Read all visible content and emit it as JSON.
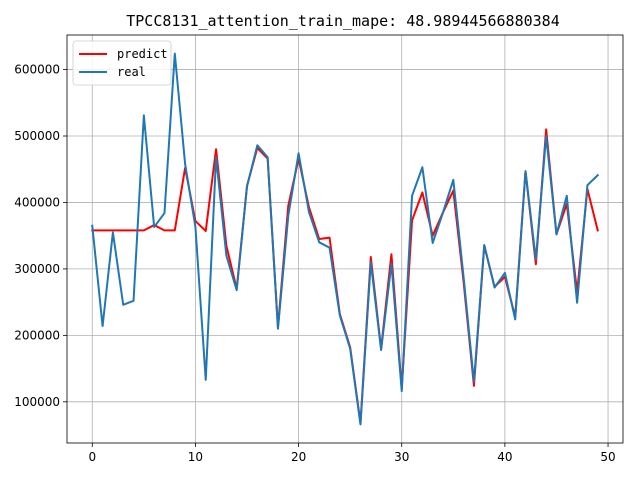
{
  "chart_data": {
    "type": "line",
    "title": "TPCC8131_attention_train_mape: 48.98944566880384",
    "xlabel": "",
    "ylabel": "",
    "xlim": [
      -2.45,
      51.45
    ],
    "ylim": [
      38000,
      652000
    ],
    "grid": true,
    "legend_position": "top-left",
    "x_ticks": [
      0,
      10,
      20,
      30,
      40,
      50
    ],
    "x_tick_labels": [
      "0",
      "10",
      "20",
      "30",
      "40",
      "50"
    ],
    "y_ticks": [
      100000,
      200000,
      300000,
      400000,
      500000,
      600000
    ],
    "y_tick_labels": [
      "100000",
      "200000",
      "300000",
      "400000",
      "500000",
      "600000"
    ],
    "x": [
      0,
      1,
      2,
      3,
      4,
      5,
      6,
      7,
      8,
      9,
      10,
      11,
      12,
      13,
      14,
      15,
      16,
      17,
      18,
      19,
      20,
      21,
      22,
      23,
      24,
      25,
      26,
      27,
      28,
      29,
      30,
      31,
      32,
      33,
      34,
      35,
      36,
      37,
      38,
      39,
      40,
      41,
      42,
      43,
      44,
      45,
      46,
      47,
      48,
      49
    ],
    "series": [
      {
        "name": "predict",
        "color": "#ff0000",
        "values": [
          358000,
          358000,
          358000,
          358000,
          358000,
          358000,
          366000,
          358000,
          358000,
          452000,
          372000,
          357000,
          480000,
          335000,
          270000,
          425000,
          482000,
          466000,
          212000,
          395000,
          466000,
          393000,
          345000,
          347000,
          232000,
          182000,
          68000,
          318000,
          180000,
          322000,
          120000,
          373000,
          415000,
          350000,
          385000,
          418000,
          280000,
          124000,
          335000,
          273000,
          288000,
          228000,
          447000,
          307000,
          510000,
          352000,
          398000,
          265000,
          420000,
          358000
        ]
      },
      {
        "name": "real",
        "color": "#1f77b4",
        "values": [
          365000,
          214000,
          355000,
          246000,
          252000,
          531000,
          363000,
          384000,
          624000,
          458000,
          363000,
          133000,
          468000,
          320000,
          268000,
          424000,
          486000,
          468000,
          210000,
          380000,
          474000,
          386000,
          340000,
          332000,
          230000,
          180000,
          66000,
          310000,
          178000,
          308000,
          116000,
          410000,
          453000,
          339000,
          385000,
          434000,
          287000,
          130000,
          336000,
          272000,
          294000,
          224000,
          447000,
          314000,
          500000,
          352000,
          410000,
          249000,
          426000,
          441000
        ]
      }
    ]
  }
}
